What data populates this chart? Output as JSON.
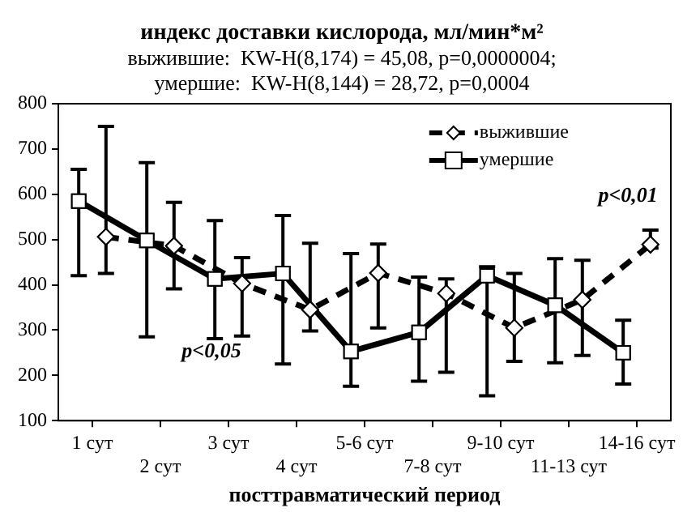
{
  "chart_data": {
    "type": "line",
    "title": "индекс доставки кислорода, мл/мин*м²",
    "subtitle": "выжившие:  KW-H(8,174) = 45,08, p=0,0000004;\nумершие:  KW-H(8,144) = 28,72, p=0,0004",
    "xlabel": "посттравматический период",
    "categories": [
      "1 сут",
      "2 сут",
      "3 сут",
      "4 сут",
      "5-6 сут",
      "7-8 сут",
      "9-10 сут",
      "11-13 сут",
      "14-16 сут"
    ],
    "series": [
      {
        "name": "выжившие",
        "color": "#000000",
        "marker": "diamond",
        "line_style": "dashed",
        "values": [
          506,
          486,
          403,
          345,
          426,
          381,
          305,
          367,
          489
        ],
        "errors": [
          [
            425,
            750
          ],
          [
            391,
            582
          ],
          [
            287,
            460
          ],
          [
            298,
            492
          ],
          [
            305,
            490
          ],
          [
            207,
            413
          ],
          [
            231,
            425
          ],
          [
            244,
            454
          ],
          [
            481,
            521
          ]
        ]
      },
      {
        "name": "умершие",
        "color": "#000000",
        "marker": "square",
        "line_style": "solid",
        "values": [
          585,
          498,
          413,
          425,
          253,
          295,
          420,
          355,
          250
        ],
        "errors": [
          [
            420,
            655
          ],
          [
            285,
            670
          ],
          [
            281,
            542
          ],
          [
            225,
            553
          ],
          [
            176,
            469
          ],
          [
            187,
            417
          ],
          [
            155,
            440
          ],
          [
            228,
            458
          ],
          [
            181,
            322
          ]
        ]
      }
    ],
    "ylim": [
      100,
      800
    ],
    "yticks": [
      100,
      200,
      300,
      400,
      500,
      600,
      700,
      800
    ],
    "grid": false,
    "legend": "top right",
    "annotations": [
      "p<0,05",
      "p<0,01"
    ]
  }
}
